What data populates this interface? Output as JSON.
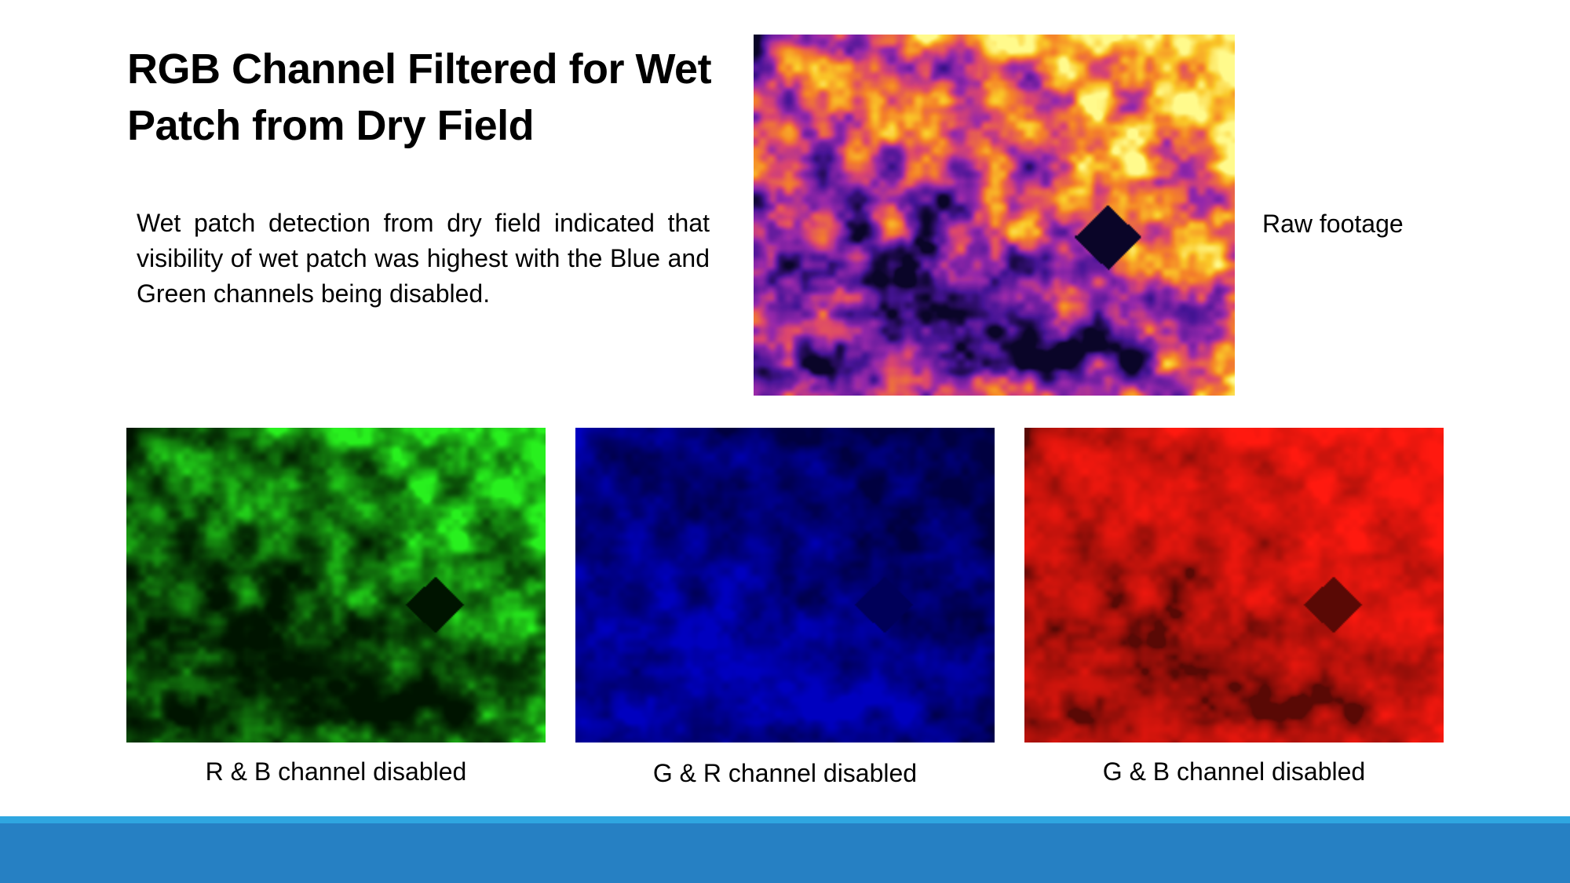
{
  "slide": {
    "title": "RGB Channel Filtered for Wet Patch from Dry Field",
    "body": "Wet patch detection from dry field indicated that visibility of wet patch was highest with the Blue and Green channels being disabled.",
    "images": {
      "raw": {
        "caption": "Raw footage",
        "icon": "thermal-raw-image"
      },
      "green": {
        "caption": "R & B channel disabled",
        "icon": "green-channel-image",
        "color": "#22e61e"
      },
      "blue": {
        "caption": "G & R channel disabled",
        "icon": "blue-channel-image",
        "color": "#1010c8"
      },
      "red": {
        "caption": "G & B channel disabled",
        "icon": "red-channel-image",
        "color": "#ff1a10"
      }
    }
  },
  "theme": {
    "accent": "#2680c3",
    "accent_light": "#2fa6e0"
  }
}
